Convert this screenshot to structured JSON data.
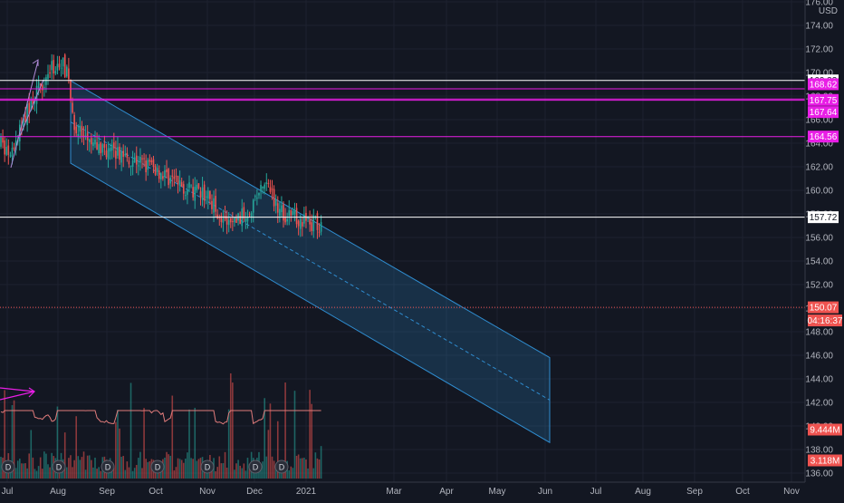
{
  "chart_data": {
    "type": "candlestick",
    "currency": "USD",
    "price_axis": {
      "min": 135.5,
      "max": 176.5,
      "ticks": [
        "176.00",
        "174.00",
        "172.00",
        "170.00",
        "168.00",
        "166.00",
        "164.00",
        "162.00",
        "160.00",
        "158.00",
        "156.00",
        "154.00",
        "152.00",
        "150.00",
        "148.00",
        "146.00",
        "144.00",
        "142.00",
        "140.00",
        "138.00",
        "136.00"
      ]
    },
    "time_axis": {
      "labels": [
        "Jul",
        "Aug",
        "Sep",
        "Oct",
        "Nov",
        "Dec",
        "2021",
        "Mar",
        "Apr",
        "May",
        "Jun",
        "Jul",
        "Aug",
        "Sep",
        "Oct",
        "Nov"
      ]
    },
    "horizontal_levels": [
      {
        "value": 169.33,
        "label": "169.33",
        "color": "#ffffff"
      },
      {
        "value": 168.62,
        "label": "168.62",
        "color": "#e91ee6"
      },
      {
        "value": 167.75,
        "label": "167.75",
        "color": "#e91ee6"
      },
      {
        "value": 167.64,
        "label": "167.64",
        "color": "#e91ee6"
      },
      {
        "value": 164.56,
        "label": "164.56",
        "color": "#e91ee6"
      },
      {
        "value": 157.72,
        "label": "157.72",
        "color": "#ffffff"
      }
    ],
    "last_price": {
      "value": 150.07,
      "label": "150.07",
      "countdown": "04:16:37",
      "color": "#ef5350"
    },
    "volume_labels": [
      {
        "label": "9.444M",
        "color": "#ef5350"
      },
      {
        "label": "3.118M",
        "color": "#ef5350"
      }
    ],
    "dividend_marker_label": "D",
    "channel": {
      "start_index": 35,
      "start_upper": 169.3,
      "start_lower": 162.3,
      "end_index": 293,
      "end_upper": 145.8,
      "end_lower": 138.6
    },
    "colors": {
      "up": "#26a69a",
      "down": "#ef5350",
      "channel": "#2f8ccf",
      "volume_ma": "#e07b7b"
    }
  }
}
